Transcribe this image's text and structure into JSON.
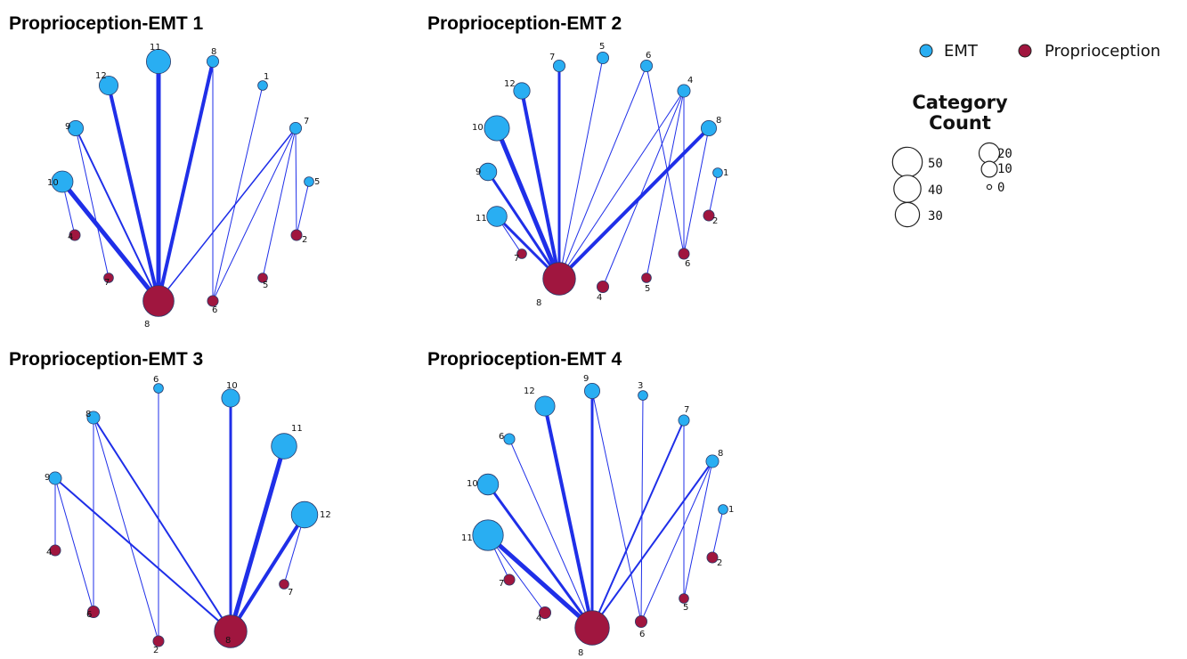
{
  "colors": {
    "emt": "#29aef2",
    "proprioception": "#a0163f",
    "edge": "#1f2fe8",
    "node_stroke": "#2a3a6a"
  },
  "legend": {
    "groups": [
      {
        "label": "EMT",
        "color_key": "emt"
      },
      {
        "label": "Proprioception",
        "color_key": "proprioception"
      }
    ],
    "count_title_1": "Category",
    "count_title_2": "Count",
    "count_values": [
      "50",
      "40",
      "30",
      "20",
      "10",
      "0"
    ]
  },
  "panels": [
    {
      "title": "Proprioception-EMT 1",
      "emt_nodes": [
        {
          "label": "1",
          "count": 2
        },
        {
          "label": "5",
          "count": 2
        },
        {
          "label": "7",
          "count": 4
        },
        {
          "label": "8",
          "count": 4
        },
        {
          "label": "9",
          "count": 9
        },
        {
          "label": "10",
          "count": 22
        },
        {
          "label": "11",
          "count": 30
        },
        {
          "label": "12",
          "count": 16
        }
      ],
      "prop_nodes": [
        {
          "label": "2",
          "count": 3
        },
        {
          "label": "4",
          "count": 3
        },
        {
          "label": "5",
          "count": 2
        },
        {
          "label": "6",
          "count": 3
        },
        {
          "label": "7",
          "count": 2
        },
        {
          "label": "8",
          "count": 55
        }
      ],
      "edges": [
        [
          "11",
          "8",
          5
        ],
        [
          "12",
          "8",
          4
        ],
        [
          "8",
          "8",
          4
        ],
        [
          "10",
          "8",
          5
        ],
        [
          "9",
          "8",
          2
        ],
        [
          "7",
          "8",
          1.5
        ],
        [
          "9",
          "7",
          1
        ],
        [
          "10",
          "4",
          1
        ],
        [
          "8",
          "6",
          1
        ],
        [
          "1",
          "6",
          1
        ],
        [
          "7",
          "6",
          1
        ],
        [
          "7",
          "5",
          1
        ],
        [
          "7",
          "2",
          1
        ],
        [
          "5",
          "2",
          1
        ]
      ]
    },
    {
      "title": "Proprioception-EMT 2",
      "emt_nodes": [
        {
          "label": "1",
          "count": 2
        },
        {
          "label": "4",
          "count": 5
        },
        {
          "label": "5",
          "count": 4
        },
        {
          "label": "6",
          "count": 4
        },
        {
          "label": "7",
          "count": 4
        },
        {
          "label": "8",
          "count": 9
        },
        {
          "label": "9",
          "count": 13
        },
        {
          "label": "10",
          "count": 33
        },
        {
          "label": "11",
          "count": 19
        },
        {
          "label": "12",
          "count": 11
        }
      ],
      "prop_nodes": [
        {
          "label": "2",
          "count": 3
        },
        {
          "label": "4",
          "count": 4
        },
        {
          "label": "5",
          "count": 2
        },
        {
          "label": "6",
          "count": 3
        },
        {
          "label": "7",
          "count": 2
        },
        {
          "label": "8",
          "count": 62
        }
      ],
      "edges": [
        [
          "7",
          "8",
          3
        ],
        [
          "12",
          "8",
          4
        ],
        [
          "10",
          "8",
          5
        ],
        [
          "9",
          "8",
          3
        ],
        [
          "11",
          "8",
          3
        ],
        [
          "8",
          "8",
          4
        ],
        [
          "5",
          "8",
          1
        ],
        [
          "6",
          "8",
          1
        ],
        [
          "4",
          "8",
          1
        ],
        [
          "11",
          "7",
          1
        ],
        [
          "6",
          "6",
          1
        ],
        [
          "4",
          "6",
          1
        ],
        [
          "4",
          "4",
          1
        ],
        [
          "4",
          "5",
          1
        ],
        [
          "8",
          "6",
          1
        ],
        [
          "1",
          "2",
          1
        ]
      ]
    },
    {
      "title": "Proprioception-EMT 3",
      "emt_nodes": [
        {
          "label": "6",
          "count": 2
        },
        {
          "label": "8",
          "count": 5
        },
        {
          "label": "9",
          "count": 5
        },
        {
          "label": "10",
          "count": 14
        },
        {
          "label": "11",
          "count": 34
        },
        {
          "label": "12",
          "count": 37
        }
      ],
      "prop_nodes": [
        {
          "label": "2",
          "count": 3
        },
        {
          "label": "4",
          "count": 3
        },
        {
          "label": "6",
          "count": 4
        },
        {
          "label": "7",
          "count": 2
        },
        {
          "label": "8",
          "count": 62
        }
      ],
      "edges": [
        [
          "10",
          "8",
          3
        ],
        [
          "11",
          "8",
          5
        ],
        [
          "12",
          "8",
          4
        ],
        [
          "8",
          "8",
          2
        ],
        [
          "9",
          "8",
          2
        ],
        [
          "6",
          "2",
          1
        ],
        [
          "8",
          "2",
          1
        ],
        [
          "8",
          "6",
          1
        ],
        [
          "9",
          "4",
          1
        ],
        [
          "9",
          "6",
          1
        ],
        [
          "12",
          "7",
          1
        ]
      ]
    },
    {
      "title": "Proprioception-EMT 4",
      "emt_nodes": [
        {
          "label": "1",
          "count": 2
        },
        {
          "label": "3",
          "count": 2
        },
        {
          "label": "6",
          "count": 3
        },
        {
          "label": "7",
          "count": 3
        },
        {
          "label": "8",
          "count": 5
        },
        {
          "label": "9",
          "count": 9
        },
        {
          "label": "10",
          "count": 21
        },
        {
          "label": "11",
          "count": 53
        },
        {
          "label": "12",
          "count": 18
        }
      ],
      "prop_nodes": [
        {
          "label": "2",
          "count": 3
        },
        {
          "label": "4",
          "count": 4
        },
        {
          "label": "5",
          "count": 2
        },
        {
          "label": "6",
          "count": 4
        },
        {
          "label": "7",
          "count": 3
        },
        {
          "label": "8",
          "count": 70
        }
      ],
      "edges": [
        [
          "9",
          "8",
          3
        ],
        [
          "12",
          "8",
          4
        ],
        [
          "10",
          "8",
          3
        ],
        [
          "11",
          "8",
          5
        ],
        [
          "7",
          "8",
          2
        ],
        [
          "8",
          "8",
          2
        ],
        [
          "6",
          "8",
          1
        ],
        [
          "11",
          "7",
          1
        ],
        [
          "11",
          "4",
          1
        ],
        [
          "9",
          "6",
          1
        ],
        [
          "3",
          "6",
          1
        ],
        [
          "8",
          "6",
          1
        ],
        [
          "7",
          "5",
          1
        ],
        [
          "8",
          "5",
          1
        ],
        [
          "1",
          "2",
          1
        ]
      ]
    }
  ]
}
